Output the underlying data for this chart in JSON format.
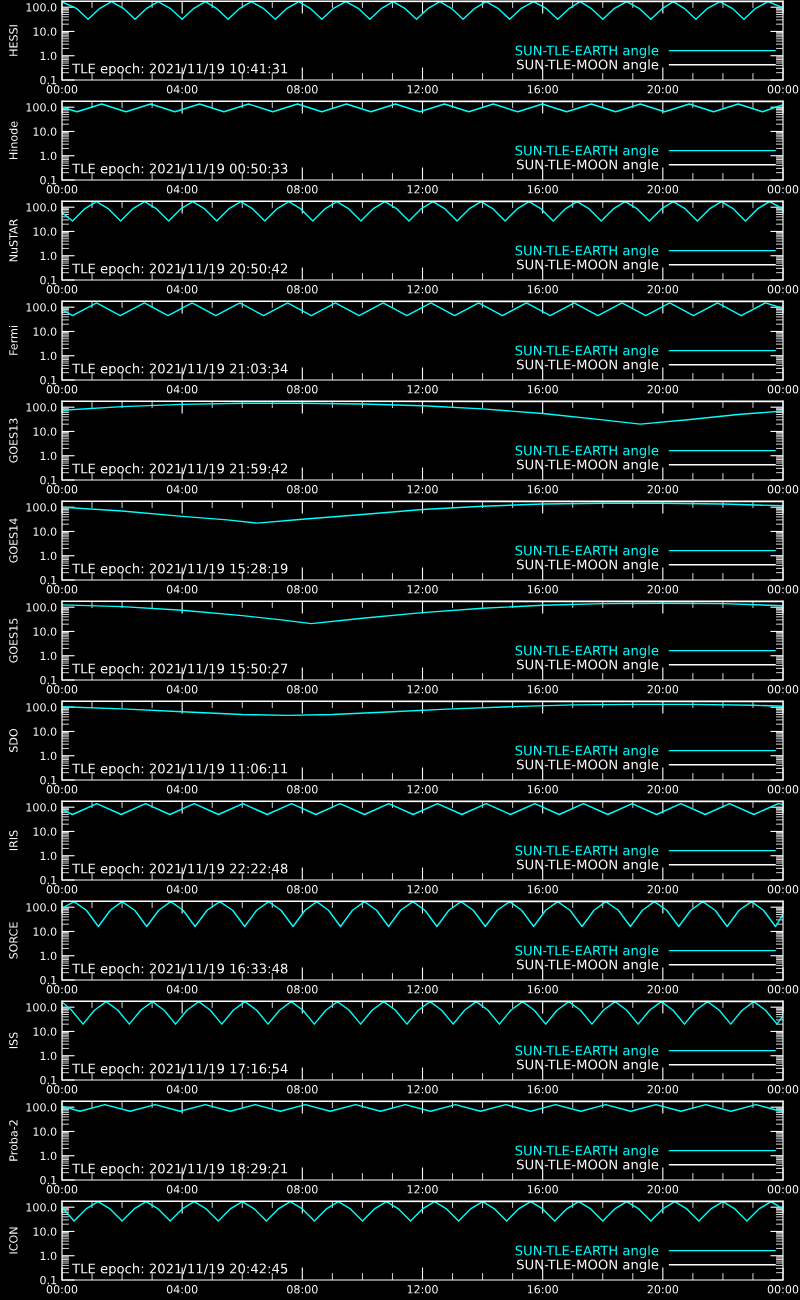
{
  "chart_data": [
    {
      "type": "line",
      "ylabel": "HESSI",
      "xlim": [
        0,
        24
      ],
      "xticks": [
        {
          "value": 0,
          "label": "00:00"
        },
        {
          "value": 4,
          "label": "04:00"
        },
        {
          "value": 8,
          "label": "08:00"
        },
        {
          "value": 12,
          "label": "12:00"
        },
        {
          "value": 16,
          "label": "16:00"
        },
        {
          "value": 20,
          "label": "20:00"
        },
        {
          "value": 24,
          "label": "00:00"
        }
      ],
      "ylim": [
        0.1,
        180
      ],
      "yticks": [
        {
          "value": 0.1,
          "label": "0.1"
        },
        {
          "value": 1,
          "label": "1.0"
        },
        {
          "value": 10,
          "label": "10.0"
        },
        {
          "value": 100,
          "label": "100.0"
        }
      ],
      "log": true,
      "legend": "bottom right",
      "annotations": [
        "TLE epoch: 2021/11/19 10:41:31"
      ],
      "series": [
        {
          "name": "SUN-TLE-EARTH angle",
          "color": "#00ffff",
          "x": [
            0,
            0.48,
            0.87,
            1.26,
            1.65,
            2.04,
            2.43,
            2.82,
            3.2,
            3.6,
            4.0,
            4.39,
            4.77,
            5.14,
            5.53,
            5.92,
            6.3,
            6.7,
            7.1,
            7.49,
            7.88,
            8.26,
            8.65,
            9.04,
            9.45,
            9.86,
            10.25,
            10.64,
            11.02,
            11.41,
            11.8,
            12.19,
            12.58,
            12.96,
            13.35,
            13.74,
            14.12,
            14.51,
            14.9,
            15.29,
            15.7,
            16.11,
            16.5,
            16.89,
            17.25,
            17.61,
            18.0,
            18.39,
            18.8,
            19.21,
            19.6,
            19.99,
            20.35,
            20.71,
            21.1,
            21.49,
            21.9,
            22.31,
            22.7,
            23.09,
            23.5,
            24
          ],
          "values": [
            165,
            90,
            32,
            90,
            170,
            90,
            32,
            90,
            170,
            90,
            32,
            90,
            170,
            90,
            32,
            90,
            170,
            90,
            32,
            90,
            170,
            90,
            32,
            90,
            170,
            90,
            32,
            90,
            170,
            90,
            32,
            90,
            170,
            90,
            32,
            90,
            170,
            90,
            32,
            90,
            170,
            90,
            32,
            90,
            170,
            90,
            32,
            90,
            170,
            90,
            32,
            90,
            170,
            90,
            32,
            90,
            170,
            90,
            32,
            90,
            170,
            95
          ]
        },
        {
          "name": "SUN-TLE-MOON angle",
          "color": "#ffffff",
          "x": [
            0,
            8,
            16,
            24
          ],
          "values": [
            176,
            174,
            172,
            170
          ]
        }
      ]
    },
    {
      "type": "line",
      "ylabel": "Hinode",
      "xlim": [
        0,
        24
      ],
      "xticks": [
        {
          "value": 0,
          "label": "00:00"
        },
        {
          "value": 4,
          "label": "04:00"
        },
        {
          "value": 8,
          "label": "08:00"
        },
        {
          "value": 12,
          "label": "12:00"
        },
        {
          "value": 16,
          "label": "16:00"
        },
        {
          "value": 20,
          "label": "20:00"
        },
        {
          "value": 24,
          "label": "00:00"
        }
      ],
      "ylim": [
        0.1,
        180
      ],
      "yticks": [
        {
          "value": 0.1,
          "label": "0.1"
        },
        {
          "value": 1,
          "label": "1.0"
        },
        {
          "value": 10,
          "label": "10.0"
        },
        {
          "value": 100,
          "label": "100.0"
        }
      ],
      "log": true,
      "legend": "bottom right",
      "annotations": [
        "TLE epoch: 2021/11/19 00:50:33"
      ],
      "series": [
        {
          "name": "SUN-TLE-EARTH angle",
          "color": "#00ffff",
          "x": [
            0,
            0.5,
            1.32,
            2.13,
            2.95,
            3.76,
            4.58,
            5.39,
            6.21,
            7.02,
            7.84,
            8.65,
            9.47,
            10.28,
            11.1,
            11.91,
            12.73,
            13.54,
            14.36,
            15.17,
            15.99,
            16.8,
            17.62,
            18.43,
            19.25,
            20.06,
            20.88,
            21.69,
            22.51,
            23.32,
            24
          ],
          "values": [
            100,
            65,
            135,
            65,
            135,
            65,
            135,
            65,
            135,
            65,
            135,
            65,
            135,
            65,
            135,
            65,
            135,
            65,
            135,
            65,
            135,
            65,
            135,
            65,
            135,
            65,
            135,
            65,
            135,
            65,
            125
          ]
        },
        {
          "name": "SUN-TLE-MOON angle",
          "color": "#ffffff",
          "x": [
            0,
            8,
            16,
            24
          ],
          "values": [
            176,
            174,
            172,
            170
          ]
        }
      ]
    },
    {
      "type": "line",
      "ylabel": "NuSTAR",
      "xlim": [
        0,
        24
      ],
      "xticks": [
        {
          "value": 0,
          "label": "00:00"
        },
        {
          "value": 4,
          "label": "04:00"
        },
        {
          "value": 8,
          "label": "08:00"
        },
        {
          "value": 12,
          "label": "12:00"
        },
        {
          "value": 16,
          "label": "16:00"
        },
        {
          "value": 20,
          "label": "20:00"
        },
        {
          "value": 24,
          "label": "00:00"
        }
      ],
      "ylim": [
        0.1,
        180
      ],
      "yticks": [
        {
          "value": 0.1,
          "label": "0.1"
        },
        {
          "value": 1,
          "label": "1.0"
        },
        {
          "value": 10,
          "label": "10.0"
        },
        {
          "value": 100,
          "label": "100.0"
        }
      ],
      "log": true,
      "legend": "bottom right",
      "annotations": [
        "TLE epoch: 2021/11/19 20:50:42"
      ],
      "series": [
        {
          "name": "SUN-TLE-EARTH angle",
          "color": "#00ffff",
          "x": [
            0,
            0.35,
            0.75,
            1.15,
            1.55,
            1.95,
            2.35,
            2.75,
            3.15,
            3.55,
            3.95,
            4.35,
            4.75,
            5.15,
            5.55,
            5.95,
            6.35,
            6.75,
            7.15,
            7.55,
            7.95,
            8.35,
            8.75,
            9.15,
            9.55,
            9.95,
            10.35,
            10.75,
            11.15,
            11.55,
            11.95,
            12.35,
            12.75,
            13.15,
            13.55,
            13.95,
            14.35,
            14.75,
            15.15,
            15.55,
            15.95,
            16.35,
            16.75,
            17.15,
            17.55,
            17.95,
            18.35,
            18.75,
            19.15,
            19.55,
            19.95,
            20.35,
            20.75,
            21.15,
            21.55,
            21.95,
            22.35,
            22.75,
            23.15,
            23.55,
            24
          ],
          "values": [
            60,
            27,
            85,
            170,
            85,
            27,
            85,
            170,
            85,
            27,
            85,
            170,
            85,
            27,
            85,
            170,
            85,
            27,
            85,
            170,
            85,
            27,
            85,
            170,
            85,
            27,
            85,
            170,
            85,
            27,
            85,
            170,
            85,
            27,
            85,
            170,
            85,
            27,
            85,
            170,
            85,
            27,
            85,
            170,
            85,
            27,
            85,
            170,
            85,
            27,
            85,
            170,
            85,
            27,
            85,
            170,
            85,
            27,
            85,
            170,
            85
          ]
        },
        {
          "name": "SUN-TLE-MOON angle",
          "color": "#ffffff",
          "x": [
            0,
            8,
            16,
            24
          ],
          "values": [
            176,
            174,
            172,
            170
          ]
        }
      ]
    },
    {
      "type": "line",
      "ylabel": "Fermi",
      "xlim": [
        0,
        24
      ],
      "xticks": [
        {
          "value": 0,
          "label": "00:00"
        },
        {
          "value": 4,
          "label": "04:00"
        },
        {
          "value": 8,
          "label": "08:00"
        },
        {
          "value": 12,
          "label": "12:00"
        },
        {
          "value": 16,
          "label": "16:00"
        },
        {
          "value": 20,
          "label": "20:00"
        },
        {
          "value": 24,
          "label": "00:00"
        }
      ],
      "ylim": [
        0.1,
        180
      ],
      "yticks": [
        {
          "value": 0.1,
          "label": "0.1"
        },
        {
          "value": 1,
          "label": "1.0"
        },
        {
          "value": 10,
          "label": "10.0"
        },
        {
          "value": 100,
          "label": "100.0"
        }
      ],
      "log": true,
      "legend": "bottom right",
      "annotations": [
        "TLE epoch: 2021/11/19 21:03:34"
      ],
      "series": [
        {
          "name": "SUN-TLE-EARTH angle",
          "color": "#00ffff",
          "x": [
            0,
            0.35,
            1.15,
            1.94,
            2.74,
            3.53,
            4.33,
            5.12,
            5.92,
            6.71,
            7.51,
            8.3,
            9.1,
            9.89,
            10.69,
            11.48,
            12.28,
            13.07,
            13.87,
            14.66,
            15.46,
            16.25,
            17.05,
            17.84,
            18.64,
            19.43,
            20.23,
            21.02,
            21.82,
            22.61,
            23.41,
            24
          ],
          "values": [
            80,
            45,
            150,
            45,
            150,
            45,
            150,
            45,
            150,
            45,
            150,
            45,
            150,
            45,
            150,
            45,
            150,
            45,
            150,
            45,
            150,
            45,
            150,
            45,
            150,
            45,
            150,
            45,
            150,
            45,
            150,
            90
          ]
        },
        {
          "name": "SUN-TLE-MOON angle",
          "color": "#ffffff",
          "x": [
            0,
            8,
            16,
            24
          ],
          "values": [
            176,
            174,
            172,
            170
          ]
        }
      ]
    },
    {
      "type": "line",
      "ylabel": "GOES13",
      "xlim": [
        0,
        24
      ],
      "xticks": [
        {
          "value": 0,
          "label": "00:00"
        },
        {
          "value": 4,
          "label": "04:00"
        },
        {
          "value": 8,
          "label": "08:00"
        },
        {
          "value": 12,
          "label": "12:00"
        },
        {
          "value": 16,
          "label": "16:00"
        },
        {
          "value": 20,
          "label": "20:00"
        },
        {
          "value": 24,
          "label": "00:00"
        }
      ],
      "ylim": [
        0.1,
        180
      ],
      "yticks": [
        {
          "value": 0.1,
          "label": "0.1"
        },
        {
          "value": 1,
          "label": "1.0"
        },
        {
          "value": 10,
          "label": "10.0"
        },
        {
          "value": 100,
          "label": "100.0"
        }
      ],
      "log": true,
      "legend": "bottom right",
      "annotations": [
        "TLE epoch: 2021/11/19 21:59:42"
      ],
      "series": [
        {
          "name": "SUN-TLE-EARTH angle",
          "color": "#00ffff",
          "x": [
            0,
            2,
            4,
            6,
            8,
            10,
            12,
            14,
            16,
            18,
            19.25,
            21,
            22.5,
            24
          ],
          "values": [
            75,
            105,
            130,
            145,
            145,
            135,
            115,
            85,
            55,
            30,
            20,
            32,
            50,
            70
          ]
        },
        {
          "name": "SUN-TLE-MOON angle",
          "color": "#ffffff",
          "x": [
            0,
            8,
            16,
            24
          ],
          "values": [
            176,
            174,
            172,
            170
          ]
        }
      ]
    },
    {
      "type": "line",
      "ylabel": "GOES14",
      "xlim": [
        0,
        24
      ],
      "xticks": [
        {
          "value": 0,
          "label": "00:00"
        },
        {
          "value": 4,
          "label": "04:00"
        },
        {
          "value": 8,
          "label": "08:00"
        },
        {
          "value": 12,
          "label": "12:00"
        },
        {
          "value": 16,
          "label": "16:00"
        },
        {
          "value": 20,
          "label": "20:00"
        },
        {
          "value": 24,
          "label": "00:00"
        }
      ],
      "ylim": [
        0.1,
        180
      ],
      "yticks": [
        {
          "value": 0.1,
          "label": "0.1"
        },
        {
          "value": 1,
          "label": "1.0"
        },
        {
          "value": 10,
          "label": "10.0"
        },
        {
          "value": 100,
          "label": "100.0"
        }
      ],
      "log": true,
      "legend": "bottom right",
      "annotations": [
        "TLE epoch: 2021/11/19 15:28:19"
      ],
      "series": [
        {
          "name": "SUN-TLE-EARTH angle",
          "color": "#00ffff",
          "x": [
            0,
            2,
            4,
            5.5,
            6.5,
            8,
            10,
            12,
            14,
            16,
            18,
            20,
            22,
            24
          ],
          "values": [
            100,
            70,
            42,
            30,
            22,
            32,
            50,
            80,
            110,
            135,
            145,
            145,
            135,
            115
          ]
        },
        {
          "name": "SUN-TLE-MOON angle",
          "color": "#ffffff",
          "x": [
            0,
            8,
            16,
            24
          ],
          "values": [
            176,
            174,
            172,
            170
          ]
        }
      ]
    },
    {
      "type": "line",
      "ylabel": "GOES15",
      "xlim": [
        0,
        24
      ],
      "xticks": [
        {
          "value": 0,
          "label": "00:00"
        },
        {
          "value": 4,
          "label": "04:00"
        },
        {
          "value": 8,
          "label": "08:00"
        },
        {
          "value": 12,
          "label": "12:00"
        },
        {
          "value": 16,
          "label": "16:00"
        },
        {
          "value": 20,
          "label": "20:00"
        },
        {
          "value": 24,
          "label": "00:00"
        }
      ],
      "ylim": [
        0.1,
        180
      ],
      "yticks": [
        {
          "value": 0.1,
          "label": "0.1"
        },
        {
          "value": 1,
          "label": "1.0"
        },
        {
          "value": 10,
          "label": "10.0"
        },
        {
          "value": 100,
          "label": "100.0"
        }
      ],
      "log": true,
      "legend": "bottom right",
      "annotations": [
        "TLE epoch: 2021/11/19 15:50:27"
      ],
      "series": [
        {
          "name": "SUN-TLE-EARTH angle",
          "color": "#00ffff",
          "x": [
            0,
            2,
            4,
            6,
            7.3,
            8.3,
            10,
            12,
            14,
            16,
            18,
            20,
            22,
            24
          ],
          "values": [
            125,
            105,
            75,
            45,
            30,
            21,
            35,
            60,
            90,
            120,
            140,
            145,
            140,
            115
          ]
        },
        {
          "name": "SUN-TLE-MOON angle",
          "color": "#ffffff",
          "x": [
            0,
            8,
            16,
            24
          ],
          "values": [
            176,
            174,
            172,
            170
          ]
        }
      ]
    },
    {
      "type": "line",
      "ylabel": "SDO",
      "xlim": [
        0,
        24
      ],
      "xticks": [
        {
          "value": 0,
          "label": "00:00"
        },
        {
          "value": 4,
          "label": "04:00"
        },
        {
          "value": 8,
          "label": "08:00"
        },
        {
          "value": 12,
          "label": "12:00"
        },
        {
          "value": 16,
          "label": "16:00"
        },
        {
          "value": 20,
          "label": "20:00"
        },
        {
          "value": 24,
          "label": "00:00"
        }
      ],
      "ylim": [
        0.1,
        180
      ],
      "yticks": [
        {
          "value": 0.1,
          "label": "0.1"
        },
        {
          "value": 1,
          "label": "1.0"
        },
        {
          "value": 10,
          "label": "10.0"
        },
        {
          "value": 100,
          "label": "100.0"
        }
      ],
      "log": true,
      "legend": "bottom right",
      "annotations": [
        "TLE epoch: 2021/11/19 11:06:11"
      ],
      "series": [
        {
          "name": "SUN-TLE-EARTH angle",
          "color": "#00ffff",
          "x": [
            0,
            2,
            4,
            6,
            7.5,
            9,
            11,
            13,
            15,
            17,
            19,
            21,
            23,
            24
          ],
          "values": [
            105,
            85,
            65,
            50,
            46,
            50,
            65,
            85,
            105,
            125,
            130,
            130,
            120,
            110
          ]
        },
        {
          "name": "SUN-TLE-MOON angle",
          "color": "#ffffff",
          "x": [
            0,
            8,
            16,
            24
          ],
          "values": [
            176,
            174,
            172,
            170
          ]
        }
      ]
    },
    {
      "type": "line",
      "ylabel": "IRIS",
      "xlim": [
        0,
        24
      ],
      "xticks": [
        {
          "value": 0,
          "label": "00:00"
        },
        {
          "value": 4,
          "label": "04:00"
        },
        {
          "value": 8,
          "label": "08:00"
        },
        {
          "value": 12,
          "label": "12:00"
        },
        {
          "value": 16,
          "label": "16:00"
        },
        {
          "value": 20,
          "label": "20:00"
        },
        {
          "value": 24,
          "label": "00:00"
        }
      ],
      "ylim": [
        0.1,
        180
      ],
      "yticks": [
        {
          "value": 0.1,
          "label": "0.1"
        },
        {
          "value": 1,
          "label": "1.0"
        },
        {
          "value": 10,
          "label": "10.0"
        },
        {
          "value": 100,
          "label": "100.0"
        }
      ],
      "log": true,
      "legend": "bottom right",
      "annotations": [
        "TLE epoch: 2021/11/19 22:22:48"
      ],
      "series": [
        {
          "name": "SUN-TLE-EARTH angle",
          "color": "#00ffff",
          "x": [
            0,
            0.35,
            1.16,
            1.97,
            2.78,
            3.59,
            4.4,
            5.21,
            6.02,
            6.83,
            7.64,
            8.45,
            9.26,
            10.07,
            10.88,
            11.69,
            12.5,
            13.31,
            14.12,
            14.93,
            15.74,
            16.55,
            17.36,
            18.17,
            18.98,
            19.79,
            20.6,
            21.41,
            22.22,
            23.03,
            23.84,
            24
          ],
          "values": [
            80,
            50,
            140,
            50,
            140,
            50,
            140,
            50,
            140,
            50,
            140,
            50,
            140,
            50,
            140,
            50,
            140,
            50,
            140,
            50,
            140,
            50,
            140,
            50,
            140,
            50,
            140,
            50,
            140,
            50,
            140,
            130
          ]
        },
        {
          "name": "SUN-TLE-MOON angle",
          "color": "#ffffff",
          "x": [
            0,
            8,
            16,
            24
          ],
          "values": [
            176,
            174,
            172,
            170
          ]
        }
      ]
    },
    {
      "type": "line",
      "ylabel": "SORCE",
      "xlim": [
        0,
        24
      ],
      "xticks": [
        {
          "value": 0,
          "label": "00:00"
        },
        {
          "value": 4,
          "label": "04:00"
        },
        {
          "value": 8,
          "label": "08:00"
        },
        {
          "value": 12,
          "label": "12:00"
        },
        {
          "value": 16,
          "label": "16:00"
        },
        {
          "value": 20,
          "label": "20:00"
        },
        {
          "value": 24,
          "label": "00:00"
        }
      ],
      "ylim": [
        0.1,
        180
      ],
      "yticks": [
        {
          "value": 0.1,
          "label": "0.1"
        },
        {
          "value": 1,
          "label": "1.0"
        },
        {
          "value": 10,
          "label": "10.0"
        },
        {
          "value": 100,
          "label": "100.0"
        }
      ],
      "log": true,
      "legend": "bottom right",
      "annotations": [
        "TLE epoch: 2021/11/19 16:33:48"
      ],
      "series": [
        {
          "name": "SUN-TLE-EARTH angle",
          "color": "#00ffff",
          "x": [
            0,
            0.4,
            0.81,
            1.21,
            1.61,
            2.0,
            2.42,
            2.82,
            3.22,
            3.62,
            4.03,
            4.43,
            4.83,
            5.25,
            5.68,
            6.08,
            6.48,
            6.88,
            7.29,
            7.69,
            8.09,
            8.48,
            8.87,
            9.27,
            9.67,
            10.07,
            10.47,
            10.87,
            11.27,
            11.68,
            12.08,
            12.48,
            12.88,
            13.28,
            13.69,
            14.09,
            14.49,
            14.9,
            15.3,
            15.7,
            16.1,
            16.5,
            16.91,
            17.31,
            17.71,
            18.1,
            18.52,
            18.92,
            19.32,
            19.72,
            20.13,
            20.53,
            20.93,
            21.33,
            21.74,
            22.14,
            22.54,
            22.95,
            23.35,
            23.75,
            24
          ],
          "values": [
            90,
            170,
            75,
            16,
            75,
            170,
            75,
            16,
            75,
            170,
            75,
            16,
            75,
            170,
            75,
            16,
            75,
            170,
            75,
            16,
            75,
            170,
            75,
            16,
            75,
            170,
            75,
            16,
            75,
            170,
            75,
            16,
            75,
            170,
            75,
            16,
            75,
            170,
            75,
            16,
            75,
            170,
            75,
            16,
            75,
            170,
            75,
            16,
            75,
            170,
            75,
            16,
            75,
            170,
            75,
            16,
            75,
            170,
            75,
            16,
            50
          ]
        },
        {
          "name": "SUN-TLE-MOON angle",
          "color": "#ffffff",
          "x": [
            0,
            8,
            16,
            24
          ],
          "values": [
            176,
            174,
            172,
            170
          ]
        }
      ]
    },
    {
      "type": "line",
      "ylabel": "ISS",
      "xlim": [
        0,
        24
      ],
      "xticks": [
        {
          "value": 0,
          "label": "00:00"
        },
        {
          "value": 4,
          "label": "04:00"
        },
        {
          "value": 8,
          "label": "08:00"
        },
        {
          "value": 12,
          "label": "12:00"
        },
        {
          "value": 16,
          "label": "16:00"
        },
        {
          "value": 20,
          "label": "20:00"
        },
        {
          "value": 24,
          "label": "00:00"
        }
      ],
      "ylim": [
        0.1,
        180
      ],
      "yticks": [
        {
          "value": 0.1,
          "label": "0.1"
        },
        {
          "value": 1,
          "label": "1.0"
        },
        {
          "value": 10,
          "label": "10.0"
        },
        {
          "value": 100,
          "label": "100.0"
        }
      ],
      "log": true,
      "legend": "bottom right",
      "annotations": [
        "TLE epoch: 2021/11/19 17:16:54"
      ],
      "series": [
        {
          "name": "SUN-TLE-EARTH angle",
          "color": "#00ffff",
          "x": [
            0,
            0.32,
            0.7,
            1.08,
            1.47,
            1.86,
            2.24,
            2.62,
            3.01,
            3.4,
            3.78,
            4.16,
            4.55,
            4.94,
            5.32,
            5.7,
            6.09,
            6.48,
            6.86,
            7.24,
            7.63,
            8.02,
            8.4,
            8.78,
            9.17,
            9.56,
            9.94,
            10.32,
            10.71,
            11.1,
            11.48,
            11.86,
            12.25,
            12.64,
            13.02,
            13.4,
            13.79,
            14.18,
            14.56,
            14.94,
            15.33,
            15.72,
            16.1,
            16.48,
            16.87,
            17.26,
            17.64,
            18.02,
            18.41,
            18.8,
            19.18,
            19.56,
            19.95,
            20.34,
            20.72,
            21.1,
            21.49,
            21.88,
            22.26,
            22.64,
            23.03,
            23.42,
            23.8,
            24
          ],
          "values": [
            165,
            75,
            20,
            75,
            170,
            75,
            20,
            75,
            170,
            75,
            20,
            75,
            170,
            75,
            20,
            75,
            170,
            75,
            20,
            75,
            170,
            75,
            20,
            75,
            170,
            75,
            20,
            75,
            170,
            75,
            20,
            75,
            170,
            75,
            20,
            75,
            170,
            75,
            20,
            75,
            170,
            75,
            20,
            75,
            170,
            75,
            20,
            75,
            170,
            75,
            20,
            75,
            170,
            75,
            20,
            75,
            170,
            75,
            20,
            75,
            170,
            75,
            20,
            45
          ]
        },
        {
          "name": "SUN-TLE-MOON angle",
          "color": "#ffffff",
          "x": [
            0,
            8,
            16,
            24
          ],
          "values": [
            176,
            174,
            172,
            170
          ]
        }
      ]
    },
    {
      "type": "line",
      "ylabel": "Proba-2",
      "xlim": [
        0,
        24
      ],
      "xticks": [
        {
          "value": 0,
          "label": "00:00"
        },
        {
          "value": 4,
          "label": "04:00"
        },
        {
          "value": 8,
          "label": "08:00"
        },
        {
          "value": 12,
          "label": "12:00"
        },
        {
          "value": 16,
          "label": "16:00"
        },
        {
          "value": 20,
          "label": "20:00"
        },
        {
          "value": 24,
          "label": "00:00"
        }
      ],
      "ylim": [
        0.1,
        180
      ],
      "yticks": [
        {
          "value": 0.1,
          "label": "0.1"
        },
        {
          "value": 1,
          "label": "1.0"
        },
        {
          "value": 10,
          "label": "10.0"
        },
        {
          "value": 100,
          "label": "100.0"
        }
      ],
      "log": true,
      "legend": "bottom right",
      "annotations": [
        "TLE epoch: 2021/11/19 18:29:21"
      ],
      "series": [
        {
          "name": "SUN-TLE-EARTH angle",
          "color": "#00ffff",
          "x": [
            0,
            0.6,
            1.43,
            2.27,
            3.1,
            3.93,
            4.77,
            5.6,
            6.43,
            7.27,
            8.1,
            8.93,
            9.77,
            10.6,
            11.43,
            12.27,
            13.1,
            13.93,
            14.77,
            15.6,
            16.43,
            17.27,
            18.1,
            18.93,
            19.77,
            20.6,
            21.43,
            22.27,
            23.1,
            23.93,
            24
          ],
          "values": [
            110,
            68,
            127,
            68,
            127,
            68,
            127,
            68,
            127,
            68,
            127,
            68,
            127,
            68,
            127,
            68,
            127,
            68,
            127,
            68,
            127,
            68,
            127,
            68,
            127,
            68,
            127,
            68,
            127,
            68,
            70
          ]
        },
        {
          "name": "SUN-TLE-MOON angle",
          "color": "#ffffff",
          "x": [
            0,
            8,
            16,
            24
          ],
          "values": [
            176,
            174,
            172,
            170
          ]
        }
      ]
    },
    {
      "type": "line",
      "ylabel": "ICON",
      "xlim": [
        0,
        24
      ],
      "xticks": [
        {
          "value": 0,
          "label": "00:00"
        },
        {
          "value": 4,
          "label": "04:00"
        },
        {
          "value": 8,
          "label": "08:00"
        },
        {
          "value": 12,
          "label": "12:00"
        },
        {
          "value": 16,
          "label": "16:00"
        },
        {
          "value": 20,
          "label": "20:00"
        },
        {
          "value": 24,
          "label": "00:00"
        }
      ],
      "ylim": [
        0.1,
        180
      ],
      "yticks": [
        {
          "value": 0.1,
          "label": "0.1"
        },
        {
          "value": 1,
          "label": "1.0"
        },
        {
          "value": 10,
          "label": "10.0"
        },
        {
          "value": 100,
          "label": "100.0"
        }
      ],
      "log": true,
      "legend": "bottom right",
      "annotations": [
        "TLE epoch: 2021/11/19 20:42:45"
      ],
      "series": [
        {
          "name": "SUN-TLE-EARTH angle",
          "color": "#00ffff",
          "x": [
            0,
            0.4,
            0.8,
            1.2,
            1.6,
            2.0,
            2.4,
            2.8,
            3.2,
            3.6,
            4.0,
            4.4,
            4.8,
            5.2,
            5.6,
            6.0,
            6.4,
            6.8,
            7.2,
            7.6,
            8.0,
            8.4,
            8.8,
            9.2,
            9.6,
            10.0,
            10.4,
            10.8,
            11.2,
            11.6,
            12.0,
            12.4,
            12.8,
            13.2,
            13.6,
            14.0,
            14.4,
            14.8,
            15.2,
            15.6,
            16.0,
            16.4,
            16.8,
            17.2,
            17.6,
            18.0,
            18.4,
            18.8,
            19.2,
            19.6,
            20.0,
            20.4,
            20.8,
            21.2,
            21.6,
            22.0,
            22.4,
            22.8,
            23.2,
            23.6,
            24
          ],
          "values": [
            100,
            27,
            85,
            170,
            85,
            27,
            85,
            170,
            85,
            27,
            85,
            170,
            85,
            27,
            85,
            170,
            85,
            27,
            85,
            170,
            85,
            27,
            85,
            170,
            85,
            27,
            85,
            170,
            85,
            27,
            85,
            170,
            85,
            27,
            85,
            170,
            85,
            27,
            85,
            170,
            85,
            27,
            85,
            170,
            85,
            27,
            85,
            170,
            85,
            27,
            85,
            170,
            85,
            27,
            85,
            170,
            85,
            27,
            85,
            170,
            85
          ]
        },
        {
          "name": "SUN-TLE-MOON angle",
          "color": "#ffffff",
          "x": [
            0,
            8,
            16,
            24
          ],
          "values": [
            176,
            174,
            172,
            170
          ]
        }
      ]
    }
  ]
}
